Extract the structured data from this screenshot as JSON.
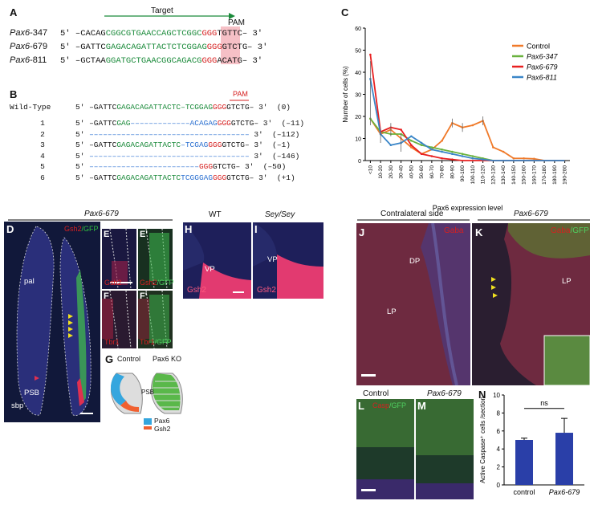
{
  "panels": {
    "A": "A",
    "B": "B",
    "C": "C",
    "D": "D",
    "E": "E",
    "E2": "E'",
    "F": "F",
    "F2": "F'",
    "G": "G",
    "H": "H",
    "I": "I",
    "J": "J",
    "K": "K",
    "L": "L",
    "M": "M",
    "N": "N"
  },
  "panelA": {
    "target_label": "Target",
    "pam_label": "PAM",
    "rows": [
      {
        "name": "Pax6-347",
        "pre": "5′ –CACAG",
        "green": "CGGCGTGAACCAGCTCGGC",
        "pam": "GGG",
        "post": "TGTTC– 3′"
      },
      {
        "name": "Pax6-679",
        "pre": "5′ –GATTC",
        "green": "GAGACAGATTACTCTCGGAG",
        "pam": "GGG",
        "post": "GTCTG– 3′"
      },
      {
        "name": "Pax6-811",
        "pre": "5′ –GCTAA",
        "green": "GGATGCTGAACGGCAGACG",
        "pam": "GGG",
        "post": "ACATG– 3′"
      }
    ]
  },
  "panelB": {
    "pam_label": "PAM",
    "wt": {
      "label": "Wild-Type",
      "pre": "5′ –GATTC",
      "green": "GAGACAGATTACTC–TCGGAG",
      "pam": "GGG",
      "post": "GTCTG– 3′",
      "count": "(0)"
    },
    "rows": [
      {
        "n": "1",
        "pre": "5′ –GATTC",
        "green": "GAG",
        "dash": "–––––––––––––",
        "blue": "ACAGAG",
        "pam": "GGG",
        "post": "GTCTG– 3′",
        "count": "(–11)"
      },
      {
        "n": "2",
        "pre": "5′ ",
        "dash": "–––––––––––––––––––––––––––––––––––",
        "post": " 3′",
        "count": "(–112)"
      },
      {
        "n": "3",
        "pre": "5′ –GATTC",
        "green": "GAGACAGATTACTC",
        "dash": "–",
        "blue": "TCGAG",
        "pam": "GGG",
        "post": "GTCTG– 3′",
        "count": "(–1)"
      },
      {
        "n": "4",
        "pre": "5′ ",
        "dash": "–––––––––––––––––––––––––––––––––––",
        "post": " 3′",
        "count": "(–146)"
      },
      {
        "n": "5",
        "pre": "5′ ",
        "dash": "––––––––––––––––––––––––",
        "pam": "GGG",
        "post": "GTCTG– 3′",
        "count": "(–50)"
      },
      {
        "n": "6",
        "pre": "5′ –GATTC",
        "green": "GAGACAGATTACTC",
        "blue": "TCGGGAG",
        "pam": "GGG",
        "post": "GTCTG– 3′",
        "count": "(+1)"
      }
    ]
  },
  "chart_data": [
    {
      "type": "line",
      "xlabel": "Pax6 expression level",
      "ylabel": "Number of cells (%)",
      "ylim": [
        0,
        60
      ],
      "yticks": [
        "0",
        "10",
        "20",
        "30",
        "40",
        "50",
        "60"
      ],
      "categories": [
        "<10",
        "10-20",
        "20-30",
        "30-40",
        "40-50",
        "50-60",
        "60-70",
        "70-80",
        "80-90",
        "90-100",
        "100-110",
        "110-120",
        "120-130",
        "130-140",
        "140-150",
        "150-160",
        "160-170",
        "170-180",
        "180-190",
        "190-200"
      ],
      "series": [
        {
          "name": "Control",
          "color": "#f07a2a",
          "values": [
            19,
            12,
            14,
            10,
            6,
            3,
            5,
            9,
            17,
            15,
            16,
            18,
            6,
            4,
            1,
            1,
            0.8,
            0,
            0,
            0
          ]
        },
        {
          "name": "Pax6-347",
          "color": "#6ab23e",
          "values": [
            19,
            13,
            12,
            12,
            9,
            7,
            6,
            5,
            4,
            3,
            2,
            1,
            0,
            0,
            0,
            0,
            0,
            0,
            0,
            0
          ]
        },
        {
          "name": "Pax6-679",
          "color": "#e82020",
          "values": [
            48,
            13,
            15,
            14,
            7,
            3,
            2,
            1,
            0.5,
            0,
            0,
            0,
            0,
            0,
            0,
            0,
            0,
            0,
            0,
            0
          ]
        },
        {
          "name": "Pax6-811",
          "color": "#3a86c8",
          "values": [
            37,
            12,
            7,
            8,
            11,
            8,
            5,
            4,
            3,
            2,
            1,
            0.5,
            0,
            0,
            0,
            0,
            0,
            0,
            0,
            0
          ]
        }
      ],
      "legend_position": "top-right"
    },
    {
      "type": "bar",
      "ylabel": "Active Caspase⁺ cells /section",
      "categories": [
        "control",
        "Pax6-679"
      ],
      "values": [
        5,
        5.8
      ],
      "errors": [
        0.2,
        1.6
      ],
      "ylim": [
        0,
        10
      ],
      "yticks": [
        "0",
        "2",
        "4",
        "6",
        "8",
        "10"
      ],
      "annotation": "ns",
      "color": "#2a3fa8"
    }
  ],
  "panelD": {
    "title": "Pax6-679",
    "gsh2": "Gsh2",
    "gfp": "/GFP",
    "pal": "pal",
    "psb": "PSB",
    "sbp": "sbp"
  },
  "panelE": {
    "gsh2": "Gsh2"
  },
  "panelE2": {
    "gsh2": "Gsh2",
    "gfp": "/GFP"
  },
  "panelF": {
    "tbr1": "Tbr1"
  },
  "panelF2": {
    "tbr1": "Tbr1",
    "gfp": "/GFP"
  },
  "panelG": {
    "control": "Control",
    "ko": "Pax6 KO",
    "psb": "PSB",
    "legend": [
      {
        "name": "Pax6",
        "color": "#35a6de"
      },
      {
        "name": "Gsh2",
        "color": "#f06030"
      }
    ]
  },
  "panelH": {
    "title": "WT",
    "vp": "VP",
    "gsh2": "Gsh2"
  },
  "panelI": {
    "title": "Sey/Sey",
    "vp": "VP",
    "gsh2": "Gsh2"
  },
  "panelJ": {
    "title": "Contralateral side",
    "dp": "DP",
    "lp": "LP",
    "gaba": "Gaba"
  },
  "panelK": {
    "title": "Pax6-679",
    "lp": "LP",
    "gaba": "Gaba",
    "gfp": "/GFP"
  },
  "panelL": {
    "title": "Control",
    "casp": "Casp",
    "gfp": "/GFP"
  },
  "panelM": {
    "title": "Pax6-679"
  }
}
